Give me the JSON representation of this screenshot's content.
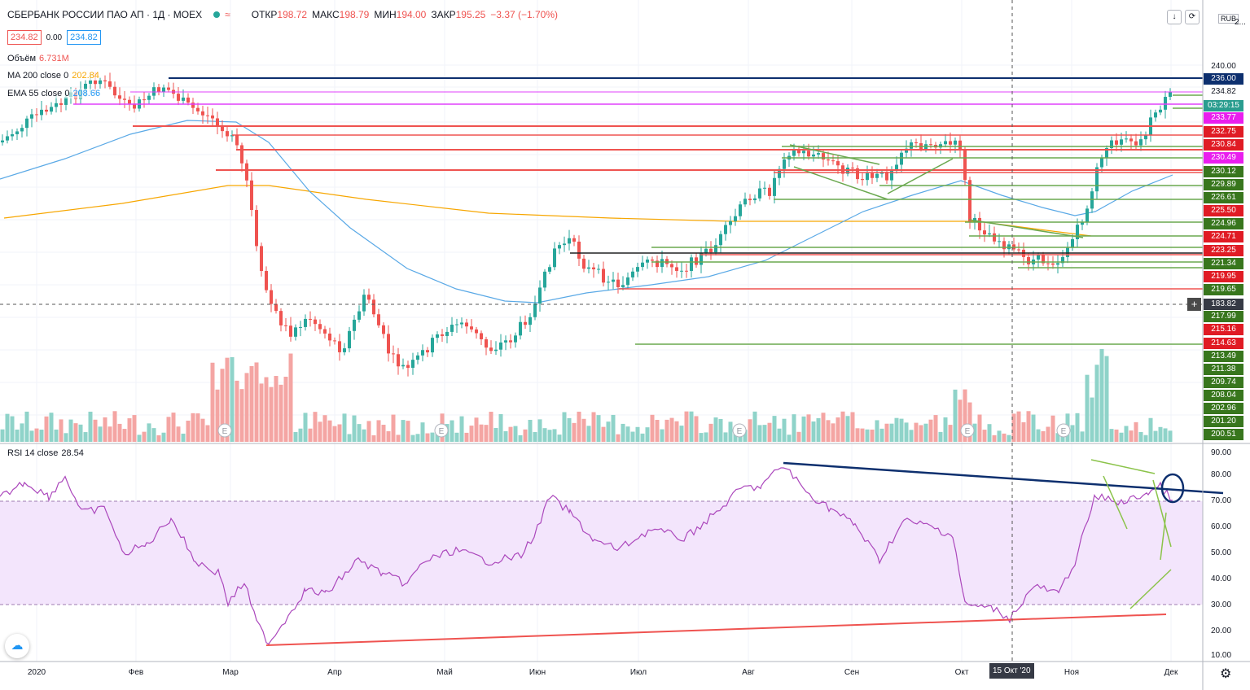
{
  "header": {
    "symbol": "СБЕРБАНК РОССИИ ПАО АП · 1Д · MOEX",
    "wave_icon": "≈",
    "open_label": "ОТКР",
    "open": "198.72",
    "high_label": "МАКС",
    "high": "198.79",
    "low_label": "МИН",
    "low": "194.00",
    "close_label": "ЗАКР",
    "close": "195.25",
    "change": "−3.37 (−1.70%)"
  },
  "price_boxes": {
    "sell": "234.82",
    "spread": "0.00",
    "buy": "234.82"
  },
  "indicators": {
    "volume": {
      "label": "Объём",
      "value": "6.731M",
      "color": "#ef5350"
    },
    "ma200": {
      "label": "MA 200 close 0",
      "value": "202.84",
      "color": "#f7a600"
    },
    "ema55": {
      "label": "EMA 55 close 0",
      "value": "208.66",
      "color": "#2196f3"
    },
    "rsi": {
      "label": "RSI 14 close",
      "value": "28.54",
      "color": "#9c27b0"
    }
  },
  "toolbar": {
    "currency": "RUB",
    "download_icon": "↓",
    "refresh_icon": "⟳",
    "plus_icon": "+",
    "settings_icon": "⚙"
  },
  "price_axis": {
    "ticks": [
      "240.00",
      "236.00",
      "234.82",
      "03:29:15",
      "233.77",
      "232.75",
      "230.84",
      "230.49",
      "230.12",
      "229.89",
      "226.61",
      "225.50",
      "224.96",
      "224.71",
      "223.25",
      "221.34",
      "219.95",
      "219.65",
      "183.82",
      "217.99",
      "215.16",
      "214.63",
      "213.49",
      "211.38",
      "209.74",
      "208.04",
      "202.96",
      "201.20",
      "200.51"
    ],
    "top_partial": "2..."
  },
  "rsi_axis": {
    "ticks": [
      "90.00",
      "80.00",
      "70.00",
      "60.00",
      "50.00",
      "40.00",
      "30.00",
      "20.00",
      "10.00"
    ]
  },
  "time_axis": {
    "labels": [
      "2020",
      "Фев",
      "Мар",
      "Апр",
      "Май",
      "Июн",
      "Июл",
      "Авг",
      "Сен",
      "Окт",
      "Ноя",
      "Дек"
    ],
    "crosshair_label": "15 Окт '20"
  },
  "event_marker": "E",
  "colors": {
    "up": "#26a69a",
    "down": "#ef5350",
    "ma200": "#f7a600",
    "ema55": "#2196f3",
    "rsi": "#9c27b0",
    "rsi_band": "#f3e5fc",
    "trend_navy": "#0d2f6e"
  }
}
